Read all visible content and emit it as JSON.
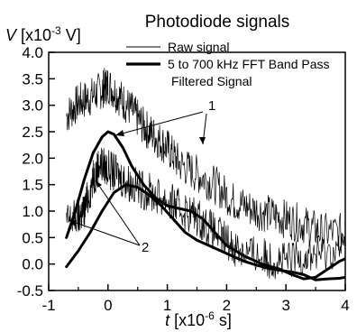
{
  "chart_data": {
    "type": "line",
    "title": "Photodiode signals",
    "ylabel": {
      "var": "V",
      "pre": " [x10",
      "exp": "-3",
      "post": " V]"
    },
    "xlabel": {
      "var": "t",
      "pre": " [x10",
      "exp": "-6",
      "post": " s]"
    },
    "xlim": [
      -1,
      4
    ],
    "ylim": [
      -0.5,
      4.0
    ],
    "xticks": [
      "-1",
      "0",
      "1",
      "2",
      "3",
      "4"
    ],
    "yticks": [
      "-0.5",
      "0.0",
      "0.5",
      "1.0",
      "1.5",
      "2.0",
      "2.5",
      "3.0",
      "3.5",
      "4.0"
    ],
    "grid": false,
    "legend_position": "top-right",
    "legend": [
      {
        "label": "Raw signal",
        "style": "thin"
      },
      {
        "label": "5 to 700 kHz FFT Band Pass",
        "style": "thick"
      },
      {
        "label": "Filtered Signal",
        "style": "none"
      }
    ],
    "annotations": [
      {
        "text": "1"
      },
      {
        "text": "2"
      }
    ],
    "series": [
      {
        "style": "raw",
        "x": [
          -0.7,
          -0.5,
          -0.3,
          -0.1,
          0.0,
          0.2,
          0.4,
          0.6,
          0.8,
          1.0,
          1.2,
          1.5,
          1.8,
          2.1,
          2.4,
          2.7,
          3.0,
          3.3,
          3.6,
          4.0
        ],
        "y": [
          2.8,
          3.05,
          3.15,
          3.3,
          3.4,
          3.15,
          2.9,
          2.6,
          2.4,
          2.2,
          1.9,
          1.7,
          1.5,
          1.2,
          1.05,
          0.95,
          0.85,
          0.75,
          0.6,
          0.6
        ]
      },
      {
        "style": "raw",
        "x": [
          -0.7,
          -0.5,
          -0.4,
          -0.25,
          -0.15,
          0.0,
          0.2,
          0.4,
          0.7,
          1.0,
          1.2,
          1.5,
          1.8,
          2.1,
          2.4,
          2.7,
          3.0,
          3.3,
          3.6,
          4.0
        ],
        "y": [
          0.8,
          0.9,
          1.0,
          1.6,
          1.9,
          1.8,
          1.65,
          1.5,
          1.35,
          1.2,
          1.05,
          0.9,
          0.6,
          0.35,
          0.2,
          0.1,
          0.05,
          0.15,
          0.2,
          0.3
        ]
      },
      {
        "style": "filtered",
        "x": [
          -0.7,
          -0.55,
          -0.4,
          -0.25,
          -0.1,
          0.0,
          0.1,
          0.25,
          0.4,
          0.6,
          0.8,
          1.0,
          1.2,
          1.4,
          1.6,
          1.8,
          2.0,
          2.3,
          2.6,
          2.9,
          3.1,
          3.3,
          3.5,
          3.7,
          3.9,
          4.0
        ],
        "y": [
          0.5,
          1.0,
          1.6,
          2.1,
          2.4,
          2.5,
          2.45,
          2.2,
          1.85,
          1.5,
          1.25,
          1.1,
          1.05,
          1.0,
          0.85,
          0.6,
          0.35,
          0.15,
          0.0,
          -0.1,
          -0.2,
          -0.28,
          -0.25,
          -0.1,
          0.05,
          0.1
        ]
      },
      {
        "style": "filtered",
        "x": [
          -0.7,
          -0.5,
          -0.3,
          -0.1,
          0.1,
          0.3,
          0.5,
          0.7,
          0.9,
          1.1,
          1.3,
          1.5,
          1.7,
          1.9,
          2.1,
          2.3,
          2.5,
          2.7,
          2.9,
          3.1,
          3.3,
          3.5,
          3.7,
          3.9,
          4.0
        ],
        "y": [
          -0.05,
          0.25,
          0.6,
          1.0,
          1.35,
          1.5,
          1.45,
          1.3,
          1.1,
          0.85,
          0.6,
          0.45,
          0.35,
          0.25,
          0.15,
          0.05,
          -0.02,
          -0.08,
          -0.12,
          -0.15,
          -0.2,
          -0.3,
          -0.28,
          -0.27,
          -0.25
        ]
      }
    ]
  }
}
